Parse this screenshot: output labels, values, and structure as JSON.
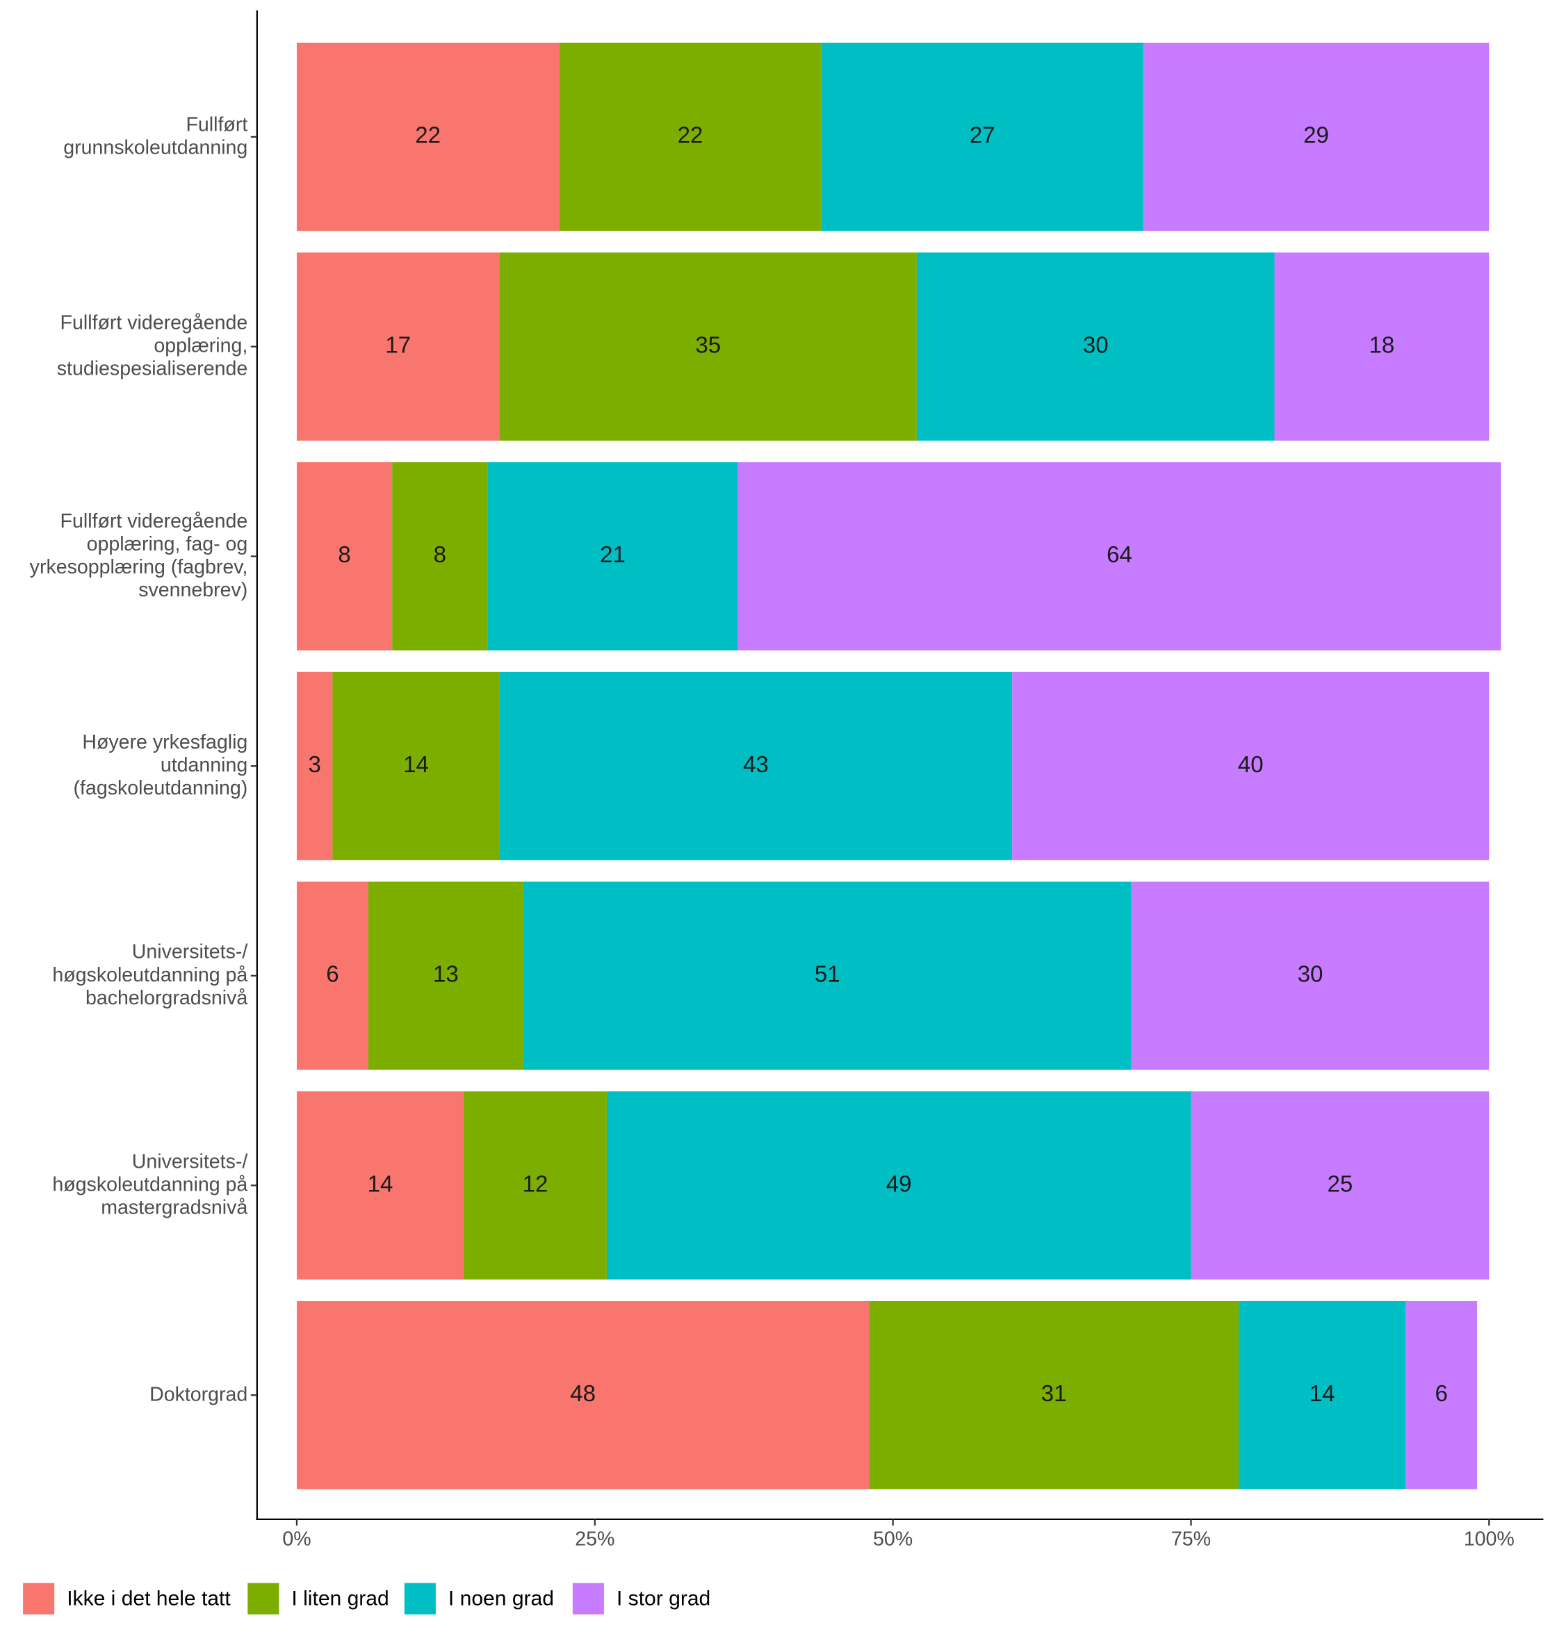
{
  "chart_data": {
    "type": "bar",
    "orientation": "horizontal",
    "stacked": true,
    "categories": [
      [
        "Fullført",
        "grunnskoleutdanning"
      ],
      [
        "Fullført videregående",
        "opplæring,",
        "studiespesialiserende"
      ],
      [
        "Fullført videregående",
        "opplæring, fag- og",
        "yrkesopplæring (fagbrev,",
        "svennebrev)"
      ],
      [
        "Høyere yrkesfaglig",
        "utdanning",
        "(fagskoleutdanning)"
      ],
      [
        "Universitets-/",
        "høgskoleutdanning på",
        "bachelorgradsnivå"
      ],
      [
        "Universitets-/",
        "høgskoleutdanning på",
        "mastergradsnivå"
      ],
      [
        "Doktorgrad"
      ]
    ],
    "series": [
      {
        "name": "Ikke i det hele tatt",
        "color": "#F8766D",
        "values": [
          22,
          17,
          8,
          3,
          6,
          14,
          48
        ]
      },
      {
        "name": "I liten grad",
        "color": "#7CAE00",
        "values": [
          22,
          35,
          8,
          14,
          13,
          12,
          31
        ]
      },
      {
        "name": "I noen grad",
        "color": "#00BFC4",
        "values": [
          27,
          30,
          21,
          43,
          51,
          49,
          14
        ]
      },
      {
        "name": "I stor grad",
        "color": "#C77CFF",
        "values": [
          29,
          18,
          64,
          40,
          30,
          25,
          6
        ]
      }
    ],
    "xlim": [
      0,
      100
    ],
    "xticks": [
      {
        "value": 0,
        "label": "0%"
      },
      {
        "value": 25,
        "label": "25%"
      },
      {
        "value": 50,
        "label": "50%"
      },
      {
        "value": 75,
        "label": "75%"
      },
      {
        "value": 100,
        "label": "100%"
      }
    ],
    "legend": "bottom-left"
  }
}
